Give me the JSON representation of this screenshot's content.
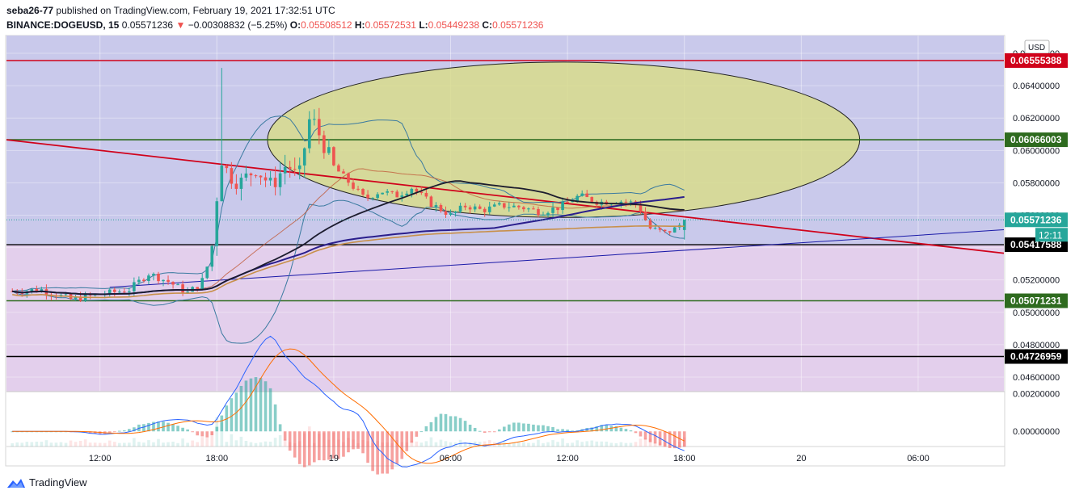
{
  "header": {
    "author": "seba26-77",
    "published_text": "published on TradingView.com, February 19, 2021 17:32:51 UTC",
    "symbol": "BINANCE:DOGEUSD, 15",
    "last": "0.05571236",
    "change_arrow": "▼",
    "change": "−0.00308832 (−5.25%)",
    "o_label": "O:",
    "o_value": "0.05508512",
    "h_label": "H:",
    "h_value": "0.05572531",
    "l_label": "L:",
    "l_value": "0.05449238",
    "c_label": "C:",
    "c_value": "0.05571236"
  },
  "currency": "USD",
  "countdown": "12:11",
  "footer": {
    "brand": "TradingView"
  },
  "colors": {
    "up": "#26a69a",
    "down": "#ef5350",
    "upper_zone": "#c9c9eb",
    "lower_zone": "#e3cfec",
    "ellipse": "#d8dc8c",
    "red_line": "#d0021b",
    "green_line": "#2e6b1f",
    "black_line": "#000000",
    "blue_line": "#1a1aa8",
    "ma_short": "#1c1c2e",
    "ma_mid": "#2a1e8c",
    "ma_long": "#c8904a",
    "bb": "#3a7aa0",
    "ma_red": "#c15a3a",
    "ma_green": "#6aa84f"
  },
  "chart_data": {
    "type": "candlestick",
    "y_ticks": [
      "0.06600000",
      "0.06400000",
      "0.06200000",
      "0.06000000",
      "0.05800000",
      "0.05600000",
      "0.05400000",
      "0.05200000",
      "0.05000000",
      "0.04800000",
      "0.04600000"
    ],
    "x_ticks": [
      {
        "label": "12:00",
        "t": -6
      },
      {
        "label": "18:00",
        "t": 0
      },
      {
        "label": "19",
        "t": 6
      },
      {
        "label": "06:00",
        "t": 12
      },
      {
        "label": "12:00",
        "t": 18
      },
      {
        "label": "18:00",
        "t": 24
      },
      {
        "label": "20",
        "t": 30
      },
      {
        "label": "06:00",
        "t": 36
      }
    ],
    "ylim": [
      0.0451,
      0.0671
    ],
    "xlim": [
      -10.8,
      40.4
    ],
    "level_lines": [
      {
        "value": 0.06555388,
        "label": "0.06555388",
        "kind": "red"
      },
      {
        "value": 0.06066003,
        "label": "0.06066003",
        "kind": "green"
      },
      {
        "value": 0.05417588,
        "label": "0.05417588",
        "kind": "black"
      },
      {
        "value": 0.05071231,
        "label": "0.05071231",
        "kind": "green"
      },
      {
        "value": 0.04726959,
        "label": "0.04726959",
        "kind": "black"
      }
    ],
    "last_price": {
      "value": 0.05571236,
      "label": "0.05571236"
    },
    "trend_lines": [
      {
        "kind": "red",
        "from": [
          -10.8,
          0.06066
        ],
        "to": [
          40.4,
          0.05365
        ]
      },
      {
        "kind": "blue",
        "from": [
          -5.5,
          0.05155
        ],
        "to": [
          40.4,
          0.0551
        ]
      }
    ],
    "ellipse": {
      "center": [
        17.8,
        0.06066
      ],
      "half_width_t": 15.2,
      "half_height": 0.0048
    },
    "price_path": [
      [
        -10.5,
        0.0513
      ],
      [
        -9,
        0.0514
      ],
      [
        -7.5,
        0.0508
      ],
      [
        -6,
        0.0511
      ],
      [
        -4.5,
        0.0514
      ],
      [
        -3.5,
        0.0524
      ],
      [
        -2.5,
        0.0519
      ],
      [
        -1.5,
        0.0512
      ],
      [
        -0.8,
        0.0518
      ],
      [
        -0.3,
        0.0535
      ],
      [
        0.2,
        0.0596
      ],
      [
        0.6,
        0.0585
      ],
      [
        1.2,
        0.058
      ],
      [
        2.0,
        0.0589
      ],
      [
        2.8,
        0.0578
      ],
      [
        3.6,
        0.0592
      ],
      [
        4.2,
        0.0582
      ],
      [
        4.8,
        0.0622
      ],
      [
        5.4,
        0.0606
      ],
      [
        6.0,
        0.059
      ],
      [
        6.8,
        0.058
      ],
      [
        7.6,
        0.057
      ],
      [
        8.4,
        0.0575
      ],
      [
        9.2,
        0.0572
      ],
      [
        10.0,
        0.0577
      ],
      [
        11.0,
        0.0567
      ],
      [
        12.0,
        0.056
      ],
      [
        12.8,
        0.0566
      ],
      [
        13.6,
        0.0563
      ],
      [
        14.6,
        0.0566
      ],
      [
        15.6,
        0.0565
      ],
      [
        16.6,
        0.0562
      ],
      [
        17.6,
        0.0565
      ],
      [
        18.6,
        0.0572
      ],
      [
        19.6,
        0.0568
      ],
      [
        20.6,
        0.0569
      ],
      [
        21.6,
        0.0567
      ],
      [
        22.2,
        0.0552
      ],
      [
        23.0,
        0.0549
      ],
      [
        23.6,
        0.0552
      ],
      [
        24.0,
        0.05571
      ]
    ],
    "oscillator": {
      "y_ticks": [
        "0.00200000",
        "0.00000000"
      ],
      "ylim": [
        -0.0008,
        0.0021
      ]
    }
  }
}
